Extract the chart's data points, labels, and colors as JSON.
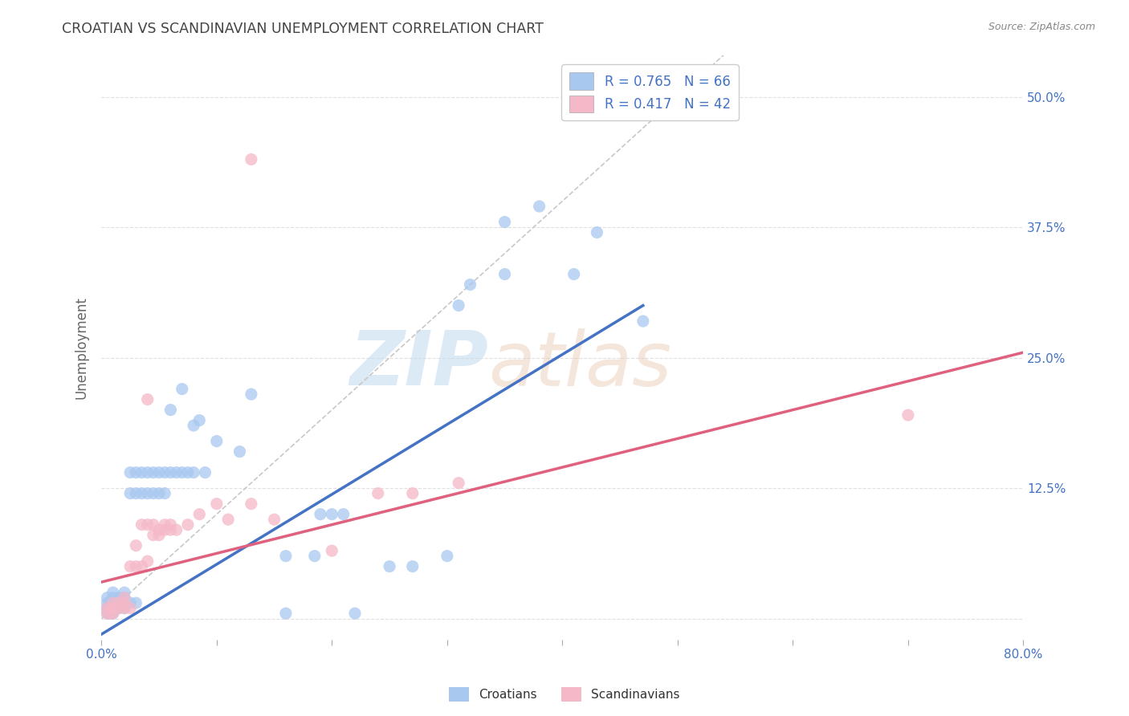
{
  "title": "CROATIAN VS SCANDINAVIAN UNEMPLOYMENT CORRELATION CHART",
  "source": "Source: ZipAtlas.com",
  "ylabel": "Unemployment",
  "xlim": [
    0.0,
    0.8
  ],
  "ylim": [
    -0.02,
    0.54
  ],
  "xticks": [
    0.0,
    0.1,
    0.2,
    0.3,
    0.4,
    0.5,
    0.6,
    0.7,
    0.8
  ],
  "xticklabels": [
    "0.0%",
    "",
    "",
    "",
    "",
    "",
    "",
    "",
    "80.0%"
  ],
  "yticks": [
    0.0,
    0.125,
    0.25,
    0.375,
    0.5
  ],
  "yticklabels": [
    "",
    "12.5%",
    "25.0%",
    "37.5%",
    "50.0%"
  ],
  "croatian_color": "#A8C8F0",
  "scandinavian_color": "#F5B8C8",
  "croatian_R": 0.765,
  "croatian_N": 66,
  "scandinavian_R": 0.417,
  "scandinavian_N": 42,
  "legend_label_croatians": "Croatians",
  "legend_label_scandinavians": "Scandinavians",
  "croatian_points": [
    [
      0.005,
      0.005
    ],
    [
      0.005,
      0.01
    ],
    [
      0.005,
      0.015
    ],
    [
      0.005,
      0.02
    ],
    [
      0.008,
      0.005
    ],
    [
      0.008,
      0.01
    ],
    [
      0.008,
      0.015
    ],
    [
      0.01,
      0.005
    ],
    [
      0.01,
      0.01
    ],
    [
      0.01,
      0.015
    ],
    [
      0.01,
      0.02
    ],
    [
      0.01,
      0.025
    ],
    [
      0.015,
      0.01
    ],
    [
      0.015,
      0.015
    ],
    [
      0.015,
      0.02
    ],
    [
      0.02,
      0.01
    ],
    [
      0.02,
      0.015
    ],
    [
      0.02,
      0.02
    ],
    [
      0.02,
      0.025
    ],
    [
      0.025,
      0.015
    ],
    [
      0.025,
      0.12
    ],
    [
      0.025,
      0.14
    ],
    [
      0.03,
      0.015
    ],
    [
      0.03,
      0.12
    ],
    [
      0.03,
      0.14
    ],
    [
      0.035,
      0.12
    ],
    [
      0.035,
      0.14
    ],
    [
      0.04,
      0.12
    ],
    [
      0.04,
      0.14
    ],
    [
      0.045,
      0.12
    ],
    [
      0.045,
      0.14
    ],
    [
      0.05,
      0.12
    ],
    [
      0.05,
      0.14
    ],
    [
      0.055,
      0.12
    ],
    [
      0.055,
      0.14
    ],
    [
      0.06,
      0.14
    ],
    [
      0.065,
      0.14
    ],
    [
      0.07,
      0.14
    ],
    [
      0.075,
      0.14
    ],
    [
      0.08,
      0.14
    ],
    [
      0.09,
      0.14
    ],
    [
      0.06,
      0.2
    ],
    [
      0.07,
      0.22
    ],
    [
      0.08,
      0.185
    ],
    [
      0.085,
      0.19
    ],
    [
      0.1,
      0.17
    ],
    [
      0.12,
      0.16
    ],
    [
      0.13,
      0.215
    ],
    [
      0.16,
      0.005
    ],
    [
      0.22,
      0.005
    ],
    [
      0.25,
      0.05
    ],
    [
      0.27,
      0.05
    ],
    [
      0.3,
      0.06
    ],
    [
      0.31,
      0.3
    ],
    [
      0.32,
      0.32
    ],
    [
      0.35,
      0.33
    ],
    [
      0.35,
      0.38
    ],
    [
      0.38,
      0.395
    ],
    [
      0.41,
      0.33
    ],
    [
      0.43,
      0.37
    ],
    [
      0.47,
      0.285
    ],
    [
      0.16,
      0.06
    ],
    [
      0.185,
      0.06
    ],
    [
      0.19,
      0.1
    ],
    [
      0.2,
      0.1
    ],
    [
      0.21,
      0.1
    ]
  ],
  "scandinavian_points": [
    [
      0.005,
      0.005
    ],
    [
      0.005,
      0.01
    ],
    [
      0.008,
      0.005
    ],
    [
      0.008,
      0.01
    ],
    [
      0.01,
      0.005
    ],
    [
      0.01,
      0.01
    ],
    [
      0.01,
      0.015
    ],
    [
      0.015,
      0.01
    ],
    [
      0.015,
      0.015
    ],
    [
      0.02,
      0.01
    ],
    [
      0.02,
      0.015
    ],
    [
      0.02,
      0.02
    ],
    [
      0.025,
      0.01
    ],
    [
      0.025,
      0.05
    ],
    [
      0.03,
      0.05
    ],
    [
      0.03,
      0.07
    ],
    [
      0.035,
      0.05
    ],
    [
      0.035,
      0.09
    ],
    [
      0.04,
      0.055
    ],
    [
      0.04,
      0.09
    ],
    [
      0.045,
      0.08
    ],
    [
      0.045,
      0.09
    ],
    [
      0.05,
      0.08
    ],
    [
      0.05,
      0.085
    ],
    [
      0.055,
      0.085
    ],
    [
      0.055,
      0.09
    ],
    [
      0.06,
      0.085
    ],
    [
      0.06,
      0.09
    ],
    [
      0.065,
      0.085
    ],
    [
      0.075,
      0.09
    ],
    [
      0.085,
      0.1
    ],
    [
      0.1,
      0.11
    ],
    [
      0.11,
      0.095
    ],
    [
      0.13,
      0.11
    ],
    [
      0.15,
      0.095
    ],
    [
      0.2,
      0.065
    ],
    [
      0.24,
      0.12
    ],
    [
      0.27,
      0.12
    ],
    [
      0.31,
      0.13
    ],
    [
      0.13,
      0.44
    ],
    [
      0.7,
      0.195
    ],
    [
      0.04,
      0.21
    ]
  ],
  "diag_line_color": "#C8C8C8",
  "croatian_line_color": "#4472C4",
  "scandinavian_line_color": "#E06080",
  "watermark_zip_color": "#D0E4F5",
  "watermark_atlas_color": "#E8D0C8",
  "background_color": "#FFFFFF",
  "grid_color": "#E0E0E0",
  "tick_color": "#4472C4",
  "title_color": "#444444",
  "source_color": "#888888"
}
